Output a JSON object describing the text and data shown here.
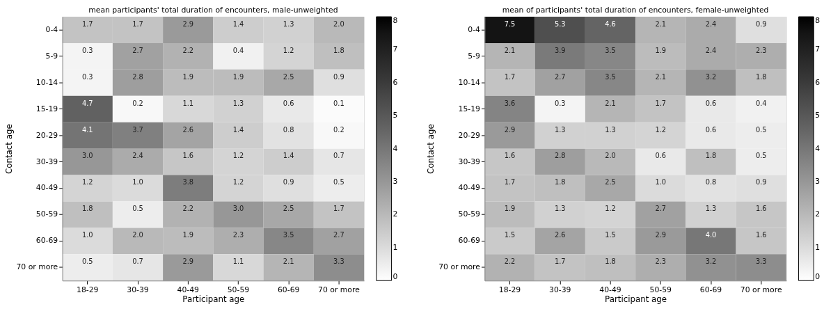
{
  "chart_data": [
    {
      "type": "heatmap",
      "title": "mean participants' total duration of encounters, male-unweighted",
      "xlabel": "Participant age",
      "ylabel": "Contact age",
      "categories": [
        "18-29",
        "30-39",
        "40-49",
        "50-59",
        "60-69",
        "70 or more"
      ],
      "y_categories": [
        "0-4",
        "5-9",
        "10-14",
        "15-19",
        "20-29",
        "30-39",
        "40-49",
        "50-59",
        "60-69",
        "70 or more"
      ],
      "cells": [
        [
          1.7,
          1.7,
          2.9,
          1.4,
          1.3,
          2.0
        ],
        [
          0.3,
          2.7,
          2.2,
          0.4,
          1.2,
          1.8
        ],
        [
          0.3,
          2.8,
          1.9,
          1.9,
          2.5,
          0.9
        ],
        [
          4.7,
          0.2,
          1.1,
          1.3,
          0.6,
          0.1
        ],
        [
          4.1,
          3.7,
          2.6,
          1.4,
          0.8,
          0.2
        ],
        [
          3.0,
          2.4,
          1.6,
          1.2,
          1.4,
          0.7
        ],
        [
          1.2,
          1.0,
          3.8,
          1.2,
          0.9,
          0.5
        ],
        [
          1.8,
          0.5,
          2.2,
          3.0,
          2.5,
          1.7
        ],
        [
          1.0,
          2.0,
          1.9,
          2.3,
          3.5,
          2.7
        ],
        [
          0.5,
          0.7,
          2.9,
          1.1,
          2.1,
          3.3
        ]
      ],
      "cell_labels": [
        [
          "1.7",
          "1.7",
          "2.9",
          "1.4",
          "1.3",
          "2.0"
        ],
        [
          "0.3",
          "2.7",
          "2.2",
          "0.4",
          "1.2",
          "1.8"
        ],
        [
          "0.3",
          "2.8",
          "1.9",
          "1.9",
          "2.5",
          "0.9"
        ],
        [
          "4.7",
          "0.2",
          "1.1",
          "1.3",
          "0.6",
          "0.1"
        ],
        [
          "4.1",
          "3.7",
          "2.6",
          "1.4",
          "0.8",
          "0.2"
        ],
        [
          "3.0",
          "2.4",
          "1.6",
          "1.2",
          "1.4",
          "0.7"
        ],
        [
          "1.2",
          "1.0",
          "3.8",
          "1.2",
          "0.9",
          "0.5"
        ],
        [
          "1.8",
          "0.5",
          "2.2",
          "3.0",
          "2.5",
          "1.7"
        ],
        [
          "1.0",
          "2.0",
          "1.9",
          "2.3",
          "3.5",
          "2.7"
        ],
        [
          "0.5",
          "0.7",
          "2.9",
          "1.1",
          "2.1",
          "3.3"
        ]
      ],
      "clim": [
        0,
        8
      ],
      "cticks": [
        0,
        1,
        2,
        3,
        4,
        5,
        6,
        7,
        8
      ]
    },
    {
      "type": "heatmap",
      "title": "mean of participants' total duration of encounters, female-unweighted",
      "xlabel": "Participant age",
      "ylabel": "Contact age",
      "categories": [
        "18-29",
        "30-39",
        "40-49",
        "50-59",
        "60-69",
        "70 or more"
      ],
      "y_categories": [
        "0-4",
        "5-9",
        "10-14",
        "15-19",
        "20-29",
        "30-39",
        "40-49",
        "50-59",
        "60-69",
        "70 or more"
      ],
      "cells": [
        [
          7.5,
          5.3,
          4.6,
          2.1,
          2.4,
          0.9
        ],
        [
          2.1,
          3.9,
          3.5,
          1.9,
          2.4,
          2.3
        ],
        [
          1.7,
          2.7,
          3.5,
          2.1,
          3.2,
          1.8
        ],
        [
          3.6,
          0.3,
          2.1,
          1.7,
          0.6,
          0.4
        ],
        [
          2.9,
          1.3,
          1.3,
          1.2,
          0.6,
          0.5
        ],
        [
          1.6,
          2.8,
          2.0,
          0.6,
          1.8,
          0.5
        ],
        [
          1.7,
          1.8,
          2.5,
          1.0,
          0.8,
          0.9
        ],
        [
          1.9,
          1.3,
          1.2,
          2.7,
          1.3,
          1.6
        ],
        [
          1.5,
          2.6,
          1.5,
          2.9,
          4.0,
          1.6
        ],
        [
          2.2,
          1.7,
          1.8,
          2.3,
          3.2,
          3.3
        ]
      ],
      "cell_labels": [
        [
          "7.5",
          "5.3",
          "4.6",
          "2.1",
          "2.4",
          "0.9"
        ],
        [
          "2.1",
          "3.9",
          "3.5",
          "1.9",
          "2.4",
          "2.3"
        ],
        [
          "1.7",
          "2.7",
          "3.5",
          "2.1",
          "3.2",
          "1.8"
        ],
        [
          "3.6",
          "0.3",
          "2.1",
          "1.7",
          "0.6",
          "0.4"
        ],
        [
          "2.9",
          "1.3",
          "1.3",
          "1.2",
          "0.6",
          "0.5"
        ],
        [
          "1.6",
          "2.8",
          "2.0",
          "0.6",
          "1.8",
          "0.5"
        ],
        [
          "1.7",
          "1.8",
          "2.5",
          "1.0",
          "0.8",
          "0.9"
        ],
        [
          "1.9",
          "1.3",
          "1.2",
          "2.7",
          "1.3",
          "1.6"
        ],
        [
          "1.5",
          "2.6",
          "1.5",
          "2.9",
          "4.0",
          "1.6"
        ],
        [
          "2.2",
          "1.7",
          "1.8",
          "2.3",
          "3.2",
          "3.3"
        ]
      ],
      "clim": [
        0,
        8
      ],
      "cticks": [
        0,
        1,
        2,
        3,
        4,
        5,
        6,
        7,
        8
      ]
    }
  ]
}
